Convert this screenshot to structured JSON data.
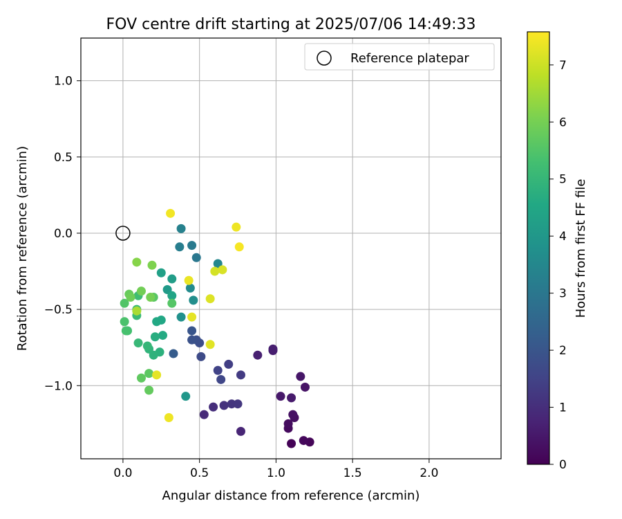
{
  "chart_data": {
    "type": "scatter",
    "title": "FOV centre drift starting at 2025/07/06 14:49:33",
    "xlabel": "Angular distance from reference (arcmin)",
    "ylabel": "Rotation from reference (arcmin)",
    "xlim": [
      -0.275,
      2.47
    ],
    "ylim": [
      -1.48,
      1.28
    ],
    "xticks": [
      0.0,
      0.5,
      1.0,
      1.5,
      2.0
    ],
    "xtick_labels": [
      "0.0",
      "0.5",
      "1.0",
      "1.5",
      "2.0"
    ],
    "yticks": [
      -1.0,
      -0.5,
      0.0,
      0.5,
      1.0
    ],
    "ytick_labels": [
      "−1.0",
      "−0.5",
      "0.0",
      "0.5",
      "1.0"
    ],
    "grid": true,
    "colormap": "viridis",
    "colorbar": {
      "label": "Hours from first FF file",
      "range": [
        0,
        7.58
      ],
      "ticks": [
        0,
        1,
        2,
        3,
        4,
        5,
        6,
        7
      ],
      "tick_labels": [
        "0",
        "1",
        "2",
        "3",
        "4",
        "5",
        "6",
        "7"
      ]
    },
    "legend": {
      "position": "top-right",
      "entries": [
        "Reference platepar"
      ]
    },
    "reference_point": {
      "x": 0.0,
      "y": 0.0,
      "label": "Reference platepar"
    },
    "points": [
      {
        "x": 1.1,
        "y": -1.38,
        "h": 0.05
      },
      {
        "x": 1.22,
        "y": -1.37,
        "h": 0.1
      },
      {
        "x": 1.18,
        "y": -1.36,
        "h": 0.15
      },
      {
        "x": 1.08,
        "y": -1.28,
        "h": 0.2
      },
      {
        "x": 1.08,
        "y": -1.25,
        "h": 0.25
      },
      {
        "x": 1.12,
        "y": -1.21,
        "h": 0.3
      },
      {
        "x": 1.11,
        "y": -1.19,
        "h": 0.35
      },
      {
        "x": 1.19,
        "y": -1.01,
        "h": 0.4
      },
      {
        "x": 1.16,
        "y": -0.94,
        "h": 0.45
      },
      {
        "x": 1.03,
        "y": -1.07,
        "h": 0.5
      },
      {
        "x": 1.1,
        "y": -1.08,
        "h": 0.55
      },
      {
        "x": 0.98,
        "y": -0.77,
        "h": 0.6
      },
      {
        "x": 0.98,
        "y": -0.76,
        "h": 0.65
      },
      {
        "x": 0.88,
        "y": -0.8,
        "h": 0.7
      },
      {
        "x": 0.77,
        "y": -1.3,
        "h": 0.8
      },
      {
        "x": 0.53,
        "y": -1.19,
        "h": 0.9
      },
      {
        "x": 0.59,
        "y": -1.14,
        "h": 1.0
      },
      {
        "x": 0.66,
        "y": -1.13,
        "h": 1.1
      },
      {
        "x": 0.71,
        "y": -1.12,
        "h": 1.15
      },
      {
        "x": 0.75,
        "y": -1.12,
        "h": 1.2
      },
      {
        "x": 0.77,
        "y": -0.93,
        "h": 1.3
      },
      {
        "x": 0.69,
        "y": -0.86,
        "h": 1.4
      },
      {
        "x": 0.62,
        "y": -0.9,
        "h": 1.5
      },
      {
        "x": 0.64,
        "y": -0.96,
        "h": 1.6
      },
      {
        "x": 0.51,
        "y": -0.81,
        "h": 1.7
      },
      {
        "x": 0.5,
        "y": -0.72,
        "h": 1.8
      },
      {
        "x": 0.48,
        "y": -0.7,
        "h": 1.85
      },
      {
        "x": 0.45,
        "y": -0.7,
        "h": 1.9
      },
      {
        "x": 0.45,
        "y": -0.64,
        "h": 2.0
      },
      {
        "x": 0.33,
        "y": -0.79,
        "h": 2.2
      },
      {
        "x": 0.48,
        "y": -0.16,
        "h": 3.0
      },
      {
        "x": 0.45,
        "y": -0.08,
        "h": 3.1
      },
      {
        "x": 0.37,
        "y": -0.09,
        "h": 3.2
      },
      {
        "x": 0.38,
        "y": 0.03,
        "h": 3.3
      },
      {
        "x": 0.62,
        "y": -0.2,
        "h": 3.5
      },
      {
        "x": 0.44,
        "y": -0.36,
        "h": 3.6
      },
      {
        "x": 0.46,
        "y": -0.44,
        "h": 3.7
      },
      {
        "x": 0.38,
        "y": -0.55,
        "h": 3.8
      },
      {
        "x": 0.41,
        "y": -1.07,
        "h": 4.0
      },
      {
        "x": 0.29,
        "y": -0.37,
        "h": 4.1
      },
      {
        "x": 0.32,
        "y": -0.3,
        "h": 4.2
      },
      {
        "x": 0.25,
        "y": -0.26,
        "h": 4.3
      },
      {
        "x": 0.32,
        "y": -0.41,
        "h": 4.4
      },
      {
        "x": 0.25,
        "y": -0.57,
        "h": 4.5
      },
      {
        "x": 0.22,
        "y": -0.58,
        "h": 4.55
      },
      {
        "x": 0.26,
        "y": -0.67,
        "h": 4.6
      },
      {
        "x": 0.21,
        "y": -0.68,
        "h": 4.7
      },
      {
        "x": 0.24,
        "y": -0.78,
        "h": 4.8
      },
      {
        "x": 0.2,
        "y": -0.8,
        "h": 4.85
      },
      {
        "x": 0.17,
        "y": -0.76,
        "h": 4.9
      },
      {
        "x": 0.16,
        "y": -0.74,
        "h": 5.0
      },
      {
        "x": 0.1,
        "y": -0.72,
        "h": 5.05
      },
      {
        "x": 0.09,
        "y": -0.54,
        "h": 5.1
      },
      {
        "x": 0.09,
        "y": -0.5,
        "h": 5.15
      },
      {
        "x": 0.1,
        "y": -0.41,
        "h": 5.2
      },
      {
        "x": 0.03,
        "y": -0.64,
        "h": 5.3
      },
      {
        "x": 0.02,
        "y": -0.64,
        "h": 5.35
      },
      {
        "x": 0.01,
        "y": -0.58,
        "h": 5.4
      },
      {
        "x": 0.01,
        "y": -0.46,
        "h": 5.5
      },
      {
        "x": 0.32,
        "y": -0.46,
        "h": 5.55
      },
      {
        "x": 0.2,
        "y": -0.42,
        "h": 5.6
      },
      {
        "x": 0.17,
        "y": -0.92,
        "h": 5.65
      },
      {
        "x": 0.12,
        "y": -0.95,
        "h": 5.7
      },
      {
        "x": 0.17,
        "y": -1.03,
        "h": 5.75
      },
      {
        "x": 0.04,
        "y": -0.4,
        "h": 5.8
      },
      {
        "x": 0.05,
        "y": -0.42,
        "h": 5.9
      },
      {
        "x": 0.12,
        "y": -0.38,
        "h": 5.95
      },
      {
        "x": 0.18,
        "y": -0.42,
        "h": 6.0
      },
      {
        "x": 0.19,
        "y": -0.21,
        "h": 6.1
      },
      {
        "x": 0.09,
        "y": -0.19,
        "h": 6.2
      },
      {
        "x": 0.09,
        "y": -0.51,
        "h": 6.6
      },
      {
        "x": 0.22,
        "y": -0.93,
        "h": 7.3
      },
      {
        "x": 0.3,
        "y": -1.21,
        "h": 7.4
      },
      {
        "x": 0.31,
        "y": 0.13,
        "h": 7.45
      },
      {
        "x": 0.43,
        "y": -0.31,
        "h": 7.35
      },
      {
        "x": 0.45,
        "y": -0.55,
        "h": 7.3
      },
      {
        "x": 0.57,
        "y": -0.73,
        "h": 7.25
      },
      {
        "x": 0.57,
        "y": -0.43,
        "h": 7.2
      },
      {
        "x": 0.6,
        "y": -0.25,
        "h": 7.1
      },
      {
        "x": 0.65,
        "y": -0.24,
        "h": 7.15
      },
      {
        "x": 0.74,
        "y": 0.04,
        "h": 7.4
      },
      {
        "x": 0.76,
        "y": -0.09,
        "h": 7.5
      }
    ]
  }
}
